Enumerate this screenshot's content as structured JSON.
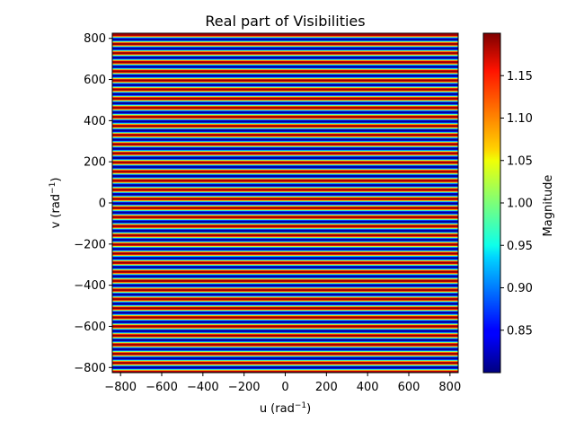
{
  "chart_data": {
    "type": "heatmap",
    "title": "Real part of Visibilities",
    "xlabel": {
      "base": "u (rad",
      "exp": "−1",
      "close": ")"
    },
    "ylabel": {
      "base": "v (rad",
      "exp": "−1",
      "close": ")"
    },
    "xlim": [
      -840,
      840
    ],
    "ylim": [
      -825,
      825
    ],
    "x_ticks": [
      -800,
      -600,
      -400,
      -200,
      0,
      200,
      400,
      600,
      800
    ],
    "y_ticks": [
      -800,
      -600,
      -400,
      -200,
      0,
      200,
      400,
      600,
      800
    ],
    "x_tick_labels": [
      "−800",
      "−600",
      "−400",
      "−200",
      "0",
      "200",
      "400",
      "600",
      "800"
    ],
    "y_tick_labels": [
      "−800",
      "−600",
      "−400",
      "−200",
      "0",
      "200",
      "400",
      "600",
      "800"
    ],
    "pattern": {
      "description_of_values": "magnitude varies only along v, as a cosine fringe; constant along u",
      "mean": 1.0,
      "amplitude": 0.2,
      "v_period": 44.3,
      "v_phase_at_zero": "minimum"
    },
    "grid": false,
    "colorbar": {
      "label": "Magnitude",
      "colormap": "jet",
      "vmin": 0.8,
      "vmax": 1.2,
      "ticks": [
        0.85,
        0.9,
        0.95,
        1.0,
        1.05,
        1.1,
        1.15
      ],
      "tick_labels": [
        "0.85",
        "0.90",
        "0.95",
        "1.00",
        "1.05",
        "1.10",
        "1.15"
      ]
    }
  }
}
